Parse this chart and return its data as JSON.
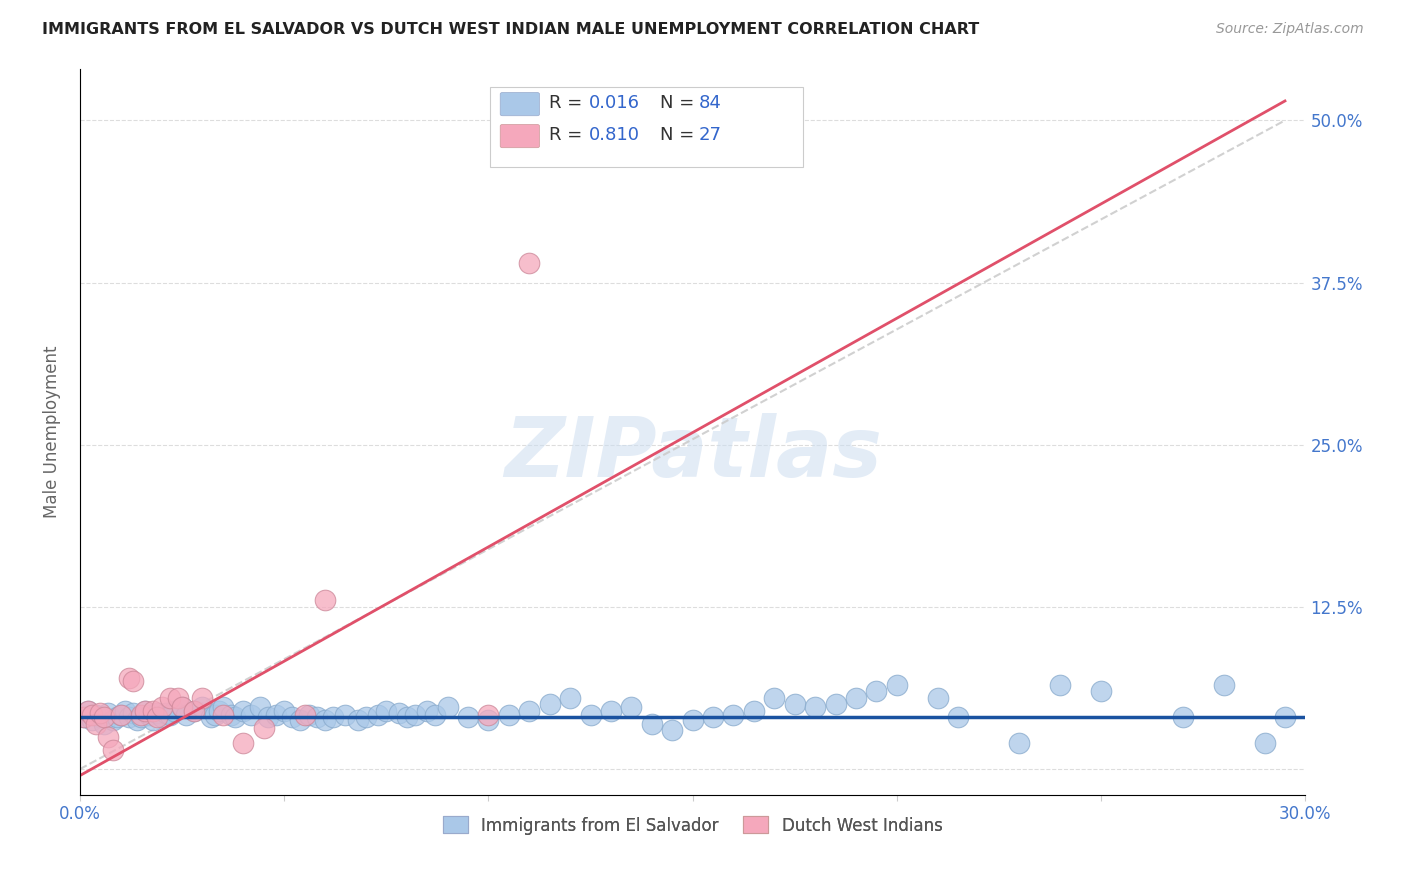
{
  "title": "IMMIGRANTS FROM EL SALVADOR VS DUTCH WEST INDIAN MALE UNEMPLOYMENT CORRELATION CHART",
  "source": "Source: ZipAtlas.com",
  "ylabel": "Male Unemployment",
  "xlim": [
    0.0,
    0.3
  ],
  "ylim": [
    -0.02,
    0.54
  ],
  "color_blue": "#aac8e8",
  "color_pink": "#f5a8bc",
  "line_blue": "#1a52a0",
  "line_pink": "#e0506a",
  "line_dashed_color": "#cccccc",
  "watermark": "ZIPatlas",
  "blue_line_y": 0.04,
  "pink_line_x0": 0.0,
  "pink_line_y0": -0.005,
  "pink_line_x1": 0.295,
  "pink_line_y1": 0.515,
  "dash_line_x0": 0.0,
  "dash_line_y0": 0.0,
  "dash_line_x1": 0.295,
  "dash_line_y1": 0.5,
  "blue_points": [
    [
      0.001,
      0.04
    ],
    [
      0.002,
      0.045
    ],
    [
      0.003,
      0.038
    ],
    [
      0.004,
      0.042
    ],
    [
      0.005,
      0.04
    ],
    [
      0.006,
      0.035
    ],
    [
      0.007,
      0.043
    ],
    [
      0.008,
      0.038
    ],
    [
      0.009,
      0.04
    ],
    [
      0.01,
      0.042
    ],
    [
      0.011,
      0.045
    ],
    [
      0.012,
      0.04
    ],
    [
      0.013,
      0.043
    ],
    [
      0.014,
      0.038
    ],
    [
      0.015,
      0.04
    ],
    [
      0.016,
      0.045
    ],
    [
      0.017,
      0.042
    ],
    [
      0.018,
      0.038
    ],
    [
      0.019,
      0.043
    ],
    [
      0.02,
      0.04
    ],
    [
      0.021,
      0.043
    ],
    [
      0.022,
      0.042
    ],
    [
      0.023,
      0.045
    ],
    [
      0.025,
      0.048
    ],
    [
      0.026,
      0.042
    ],
    [
      0.028,
      0.045
    ],
    [
      0.03,
      0.048
    ],
    [
      0.032,
      0.04
    ],
    [
      0.033,
      0.042
    ],
    [
      0.034,
      0.045
    ],
    [
      0.035,
      0.048
    ],
    [
      0.037,
      0.042
    ],
    [
      0.038,
      0.04
    ],
    [
      0.04,
      0.045
    ],
    [
      0.042,
      0.042
    ],
    [
      0.044,
      0.048
    ],
    [
      0.046,
      0.04
    ],
    [
      0.048,
      0.042
    ],
    [
      0.05,
      0.045
    ],
    [
      0.052,
      0.04
    ],
    [
      0.054,
      0.038
    ],
    [
      0.056,
      0.042
    ],
    [
      0.058,
      0.04
    ],
    [
      0.06,
      0.038
    ],
    [
      0.062,
      0.04
    ],
    [
      0.065,
      0.042
    ],
    [
      0.068,
      0.038
    ],
    [
      0.07,
      0.04
    ],
    [
      0.073,
      0.042
    ],
    [
      0.075,
      0.045
    ],
    [
      0.078,
      0.043
    ],
    [
      0.08,
      0.04
    ],
    [
      0.082,
      0.042
    ],
    [
      0.085,
      0.045
    ],
    [
      0.087,
      0.042
    ],
    [
      0.09,
      0.048
    ],
    [
      0.095,
      0.04
    ],
    [
      0.1,
      0.038
    ],
    [
      0.105,
      0.042
    ],
    [
      0.11,
      0.045
    ],
    [
      0.115,
      0.05
    ],
    [
      0.12,
      0.055
    ],
    [
      0.125,
      0.042
    ],
    [
      0.13,
      0.045
    ],
    [
      0.135,
      0.048
    ],
    [
      0.14,
      0.035
    ],
    [
      0.145,
      0.03
    ],
    [
      0.15,
      0.038
    ],
    [
      0.155,
      0.04
    ],
    [
      0.16,
      0.042
    ],
    [
      0.165,
      0.045
    ],
    [
      0.17,
      0.055
    ],
    [
      0.175,
      0.05
    ],
    [
      0.18,
      0.048
    ],
    [
      0.185,
      0.05
    ],
    [
      0.19,
      0.055
    ],
    [
      0.195,
      0.06
    ],
    [
      0.2,
      0.065
    ],
    [
      0.21,
      0.055
    ],
    [
      0.215,
      0.04
    ],
    [
      0.23,
      0.02
    ],
    [
      0.24,
      0.065
    ],
    [
      0.25,
      0.06
    ],
    [
      0.27,
      0.04
    ],
    [
      0.28,
      0.065
    ],
    [
      0.29,
      0.02
    ],
    [
      0.295,
      0.04
    ]
  ],
  "pink_points": [
    [
      0.001,
      0.04
    ],
    [
      0.002,
      0.045
    ],
    [
      0.003,
      0.042
    ],
    [
      0.004,
      0.035
    ],
    [
      0.005,
      0.043
    ],
    [
      0.006,
      0.04
    ],
    [
      0.007,
      0.025
    ],
    [
      0.008,
      0.015
    ],
    [
      0.01,
      0.042
    ],
    [
      0.012,
      0.07
    ],
    [
      0.013,
      0.068
    ],
    [
      0.015,
      0.042
    ],
    [
      0.016,
      0.045
    ],
    [
      0.018,
      0.045
    ],
    [
      0.019,
      0.04
    ],
    [
      0.02,
      0.048
    ],
    [
      0.022,
      0.055
    ],
    [
      0.024,
      0.055
    ],
    [
      0.025,
      0.048
    ],
    [
      0.028,
      0.045
    ],
    [
      0.03,
      0.055
    ],
    [
      0.035,
      0.042
    ],
    [
      0.04,
      0.02
    ],
    [
      0.045,
      0.032
    ],
    [
      0.055,
      0.042
    ],
    [
      0.06,
      0.13
    ],
    [
      0.1,
      0.042
    ],
    [
      0.11,
      0.39
    ]
  ]
}
